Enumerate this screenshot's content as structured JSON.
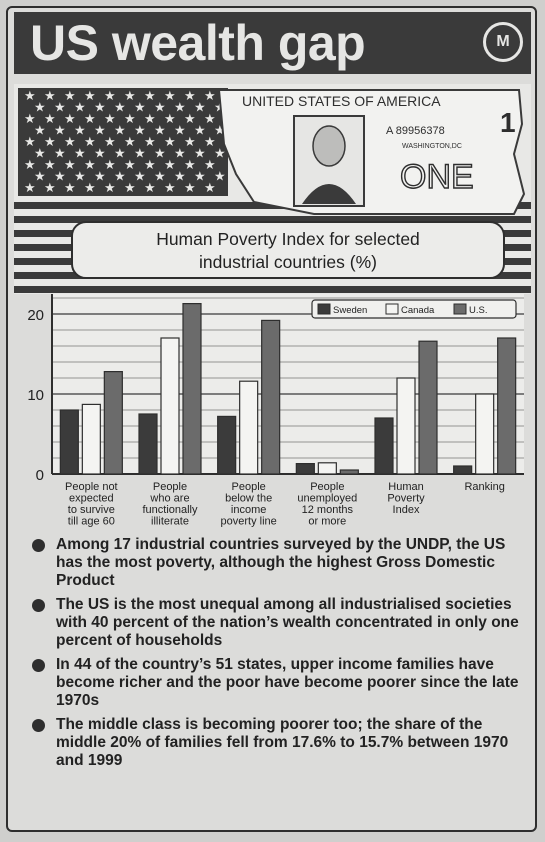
{
  "header": {
    "title": "US wealth gap",
    "logo_text": "M"
  },
  "banner": {
    "bill_country": "UNITED STATES OF AMERICA",
    "bill_serial": "A 89956378",
    "bill_city": "WASHINGTON,DC",
    "bill_denomination": "ONE",
    "bill_corner": "1"
  },
  "chart_data": {
    "type": "bar",
    "title": "Human Poverty Index for selected industrial countries (%)",
    "title_line1": "Human Poverty Index for selected",
    "title_line2": "industrial countries (%)",
    "categories": [
      [
        "People not",
        "expected",
        "to survive",
        "till age 60"
      ],
      [
        "People",
        "who are",
        "functionally",
        "illiterate"
      ],
      [
        "People",
        "below the",
        "income",
        "poverty line"
      ],
      [
        "People",
        "unemployed",
        "12 months",
        "or more"
      ],
      [
        "Human",
        "Poverty",
        "Index"
      ],
      [
        "Ranking"
      ]
    ],
    "series": [
      {
        "name": "Sweden",
        "values": [
          8.0,
          7.5,
          7.2,
          1.3,
          7.0,
          1.0
        ],
        "color": "#3b3b3b"
      },
      {
        "name": "Canada",
        "values": [
          8.7,
          17.0,
          11.6,
          1.4,
          12.0,
          10.0
        ],
        "color": "#f4f4f2"
      },
      {
        "name": "U.S.",
        "values": [
          12.8,
          21.3,
          19.2,
          0.5,
          16.6,
          17.0
        ],
        "color": "#6b6b6b"
      }
    ],
    "yticks": [
      "0",
      "10",
      "20"
    ],
    "ylim": [
      0,
      22.5
    ],
    "legend_placement": "top-right",
    "grid": true
  },
  "bullets": [
    "Among 17 industrial countries surveyed by the UNDP, the US has the most poverty, although the highest Gross Domestic Product",
    "The US is the most unequal among all industrialised societies with 40 percent of the nation’s wealth concentrated in only one percent of households",
    "In 44 of the country’s 51 states, upper income families have become richer and the poor have become poorer since the late 1970s",
    "The middle class is becoming poorer too; the share of the middle 20% of families fell from 17.6% to 15.7% between 1970 and 1999"
  ]
}
